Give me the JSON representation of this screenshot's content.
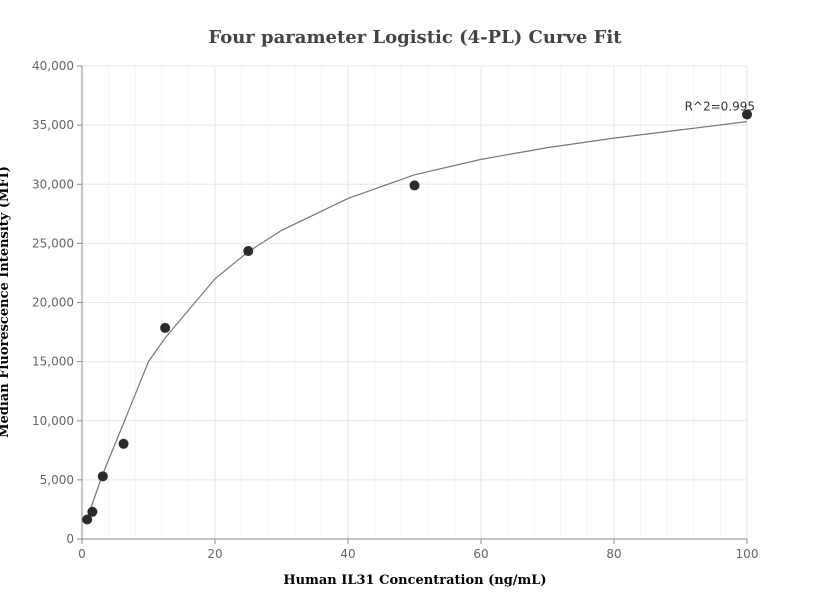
{
  "chart_data": {
    "type": "scatter",
    "title": "Four parameter Logistic (4-PL) Curve Fit",
    "xlabel": "Human IL31 Concentration (ng/mL)",
    "ylabel": "Median Fluorescence Intensity (MFI)",
    "xlim": [
      0,
      100
    ],
    "ylim": [
      0,
      40000
    ],
    "x_ticks": [
      0,
      20,
      40,
      60,
      80,
      100
    ],
    "x_tick_labels": [
      "0",
      "20",
      "40",
      "60",
      "80",
      "100"
    ],
    "y_ticks": [
      0,
      5000,
      10000,
      15000,
      20000,
      25000,
      30000,
      35000,
      40000
    ],
    "y_tick_labels": [
      "0",
      "5,000",
      "10,000",
      "15,000",
      "20,000",
      "25,000",
      "30,000",
      "35,000",
      "40,000"
    ],
    "grid": true,
    "series": [
      {
        "x": [
          0.78,
          1.56,
          3.13,
          6.25,
          12.5,
          25,
          50,
          100
        ],
        "y": [
          1650,
          2300,
          5300,
          8050,
          17850,
          24350,
          29900,
          35900
        ]
      }
    ],
    "fit_curve": {
      "x": [
        0.78,
        1.56,
        3.13,
        6.25,
        10,
        12.5,
        20,
        25,
        30,
        40,
        50,
        60,
        70,
        80,
        90,
        100
      ],
      "y": [
        1750,
        3000,
        5500,
        9800,
        15000,
        17000,
        22000,
        24300,
        26100,
        28800,
        30800,
        32100,
        33100,
        33900,
        34600,
        35300
      ]
    },
    "annotation": "R^2=0.995"
  }
}
